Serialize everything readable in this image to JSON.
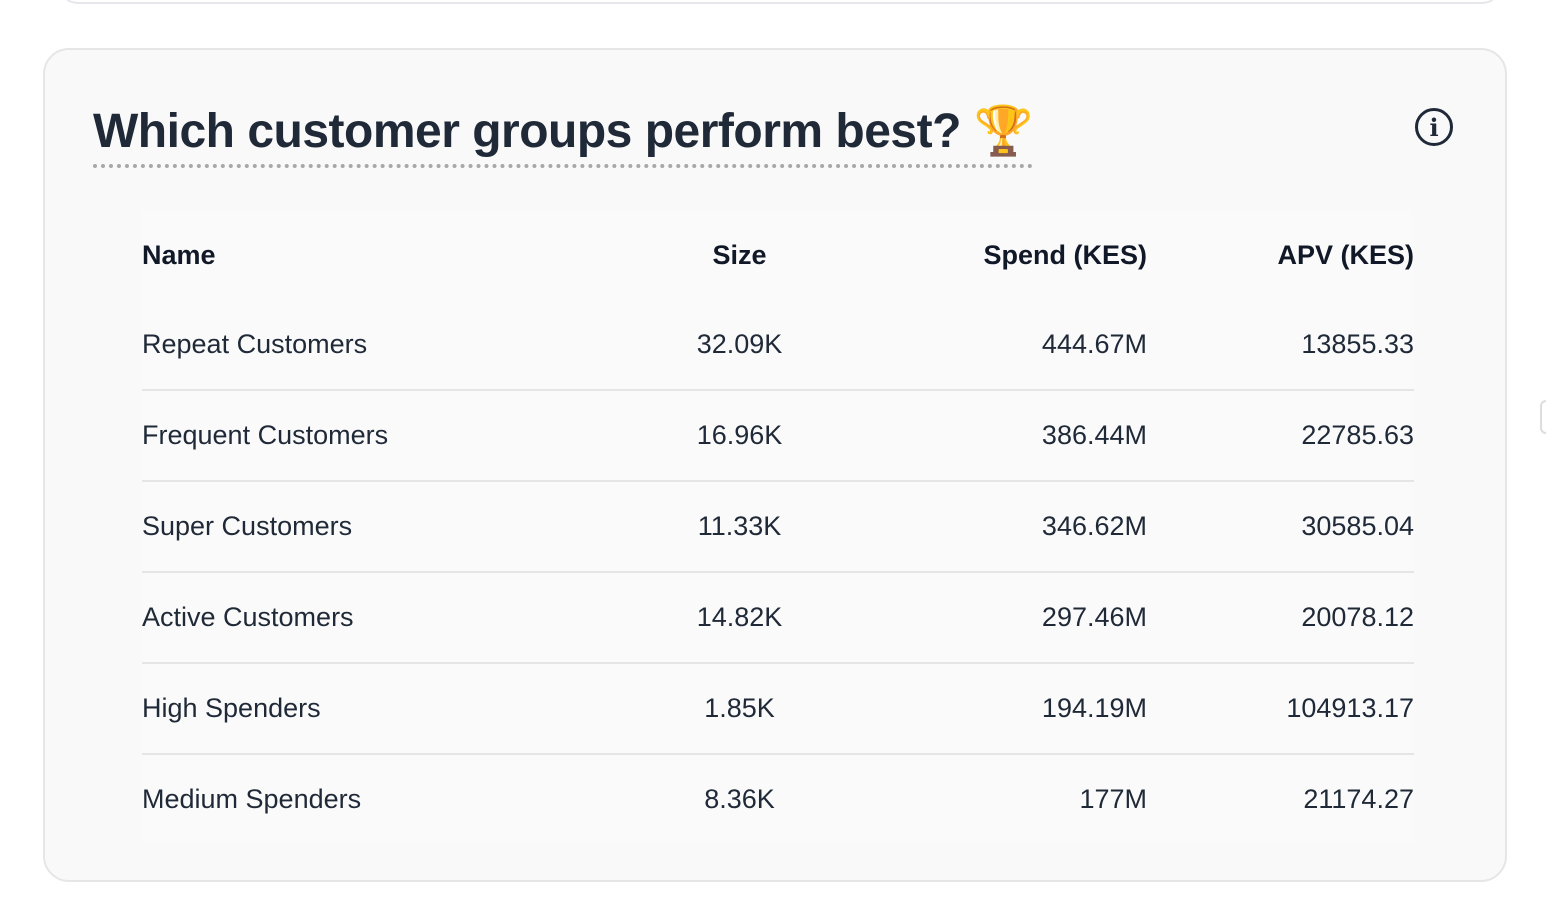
{
  "card": {
    "title": "Which customer groups perform best?",
    "title_emoji": "🏆",
    "info_icon": "info-icon",
    "info_glyph": "i"
  },
  "table": {
    "headers": [
      "Name",
      "Size",
      "Spend (KES)",
      "APV (KES)"
    ],
    "rows": [
      [
        "Repeat Customers",
        "32.09K",
        "444.67M",
        "13855.33"
      ],
      [
        "Frequent Customers",
        "16.96K",
        "386.44M",
        "22785.63"
      ],
      [
        "Super Customers",
        "11.33K",
        "346.62M",
        "30585.04"
      ],
      [
        "Active Customers",
        "14.82K",
        "297.46M",
        "20078.12"
      ],
      [
        "High Spenders",
        "1.85K",
        "194.19M",
        "104913.17"
      ],
      [
        "Medium Spenders",
        "8.36K",
        "177M",
        "21174.27"
      ]
    ]
  }
}
